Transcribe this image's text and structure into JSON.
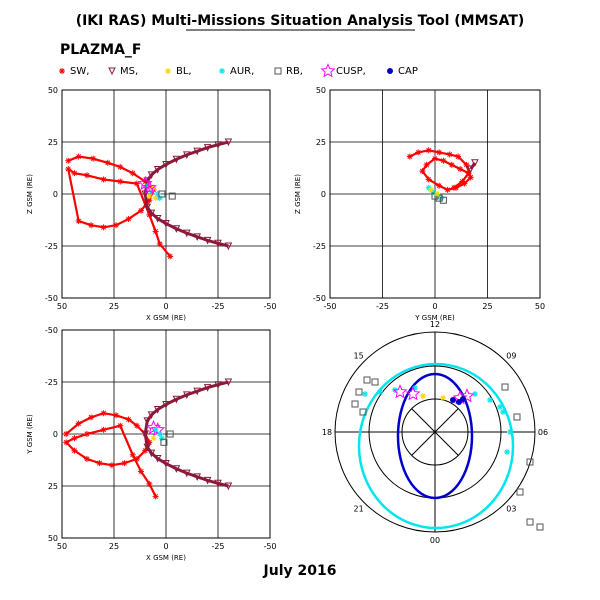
{
  "header": {
    "title": "(IKI RAS) Multi-Missions Situation Analysis Tool (MMSAT)",
    "mission": "PLAZMA_F"
  },
  "footer": {
    "date": "July 2016"
  },
  "legend": [
    {
      "label": "SW,",
      "color": "#ff0000",
      "marker": "asterisk"
    },
    {
      "label": "MS,",
      "color": "#8b1a3a",
      "marker": "triangle-down"
    },
    {
      "label": "BL,",
      "color": "#ffd700",
      "marker": "asterisk"
    },
    {
      "label": "AUR,",
      "color": "#00e5ee",
      "marker": "asterisk"
    },
    {
      "label": "RB,",
      "color": "#555555",
      "marker": "square"
    },
    {
      "label": "CUSP,",
      "color": "#ff00ff",
      "marker": "star"
    },
    {
      "label": "CAP",
      "color": "#0000cc",
      "marker": "circle"
    }
  ],
  "chart_data": [
    {
      "type": "scatter",
      "panel": "X-Z",
      "xlabel": "X GSM (RE)",
      "ylabel": "Z GSM (RE)",
      "xlim": [
        50,
        -50
      ],
      "ylim": [
        -50,
        50
      ],
      "xticks": [
        50,
        25,
        0,
        -25,
        -50
      ],
      "yticks": [
        50,
        25,
        0,
        -25,
        -50
      ],
      "grid": true,
      "series": [
        {
          "name": "SW,",
          "color": "#ff0000",
          "x": [
            47,
            42,
            35,
            28,
            22,
            16,
            10,
            6,
            8,
            12,
            18,
            24,
            30,
            36,
            42,
            47,
            44,
            38,
            30,
            22,
            14,
            8,
            5,
            3,
            -2
          ],
          "y": [
            16,
            18,
            17,
            15,
            13,
            10,
            6,
            2,
            -3,
            -8,
            -12,
            -15,
            -16,
            -15,
            -13,
            12,
            10,
            9,
            7,
            6,
            5,
            -10,
            -18,
            -24,
            -30
          ]
        },
        {
          "name": "MS,",
          "color": "#8b1a3a",
          "x": [
            -30,
            -25,
            -20,
            -15,
            -10,
            -5,
            0,
            4,
            7,
            9,
            10,
            9,
            7,
            4,
            0,
            -5,
            -10,
            -15,
            -20,
            -25,
            -30
          ],
          "y": [
            25,
            23.7,
            22.3,
            20.6,
            18.8,
            16.7,
            14.2,
            11.8,
            9.2,
            6.3,
            0,
            -6.3,
            -9.2,
            -11.8,
            -14.2,
            -16.7,
            -18.8,
            -20.6,
            -22.3,
            -23.7,
            -25
          ]
        },
        {
          "name": "BL,",
          "color": "#ffd700",
          "x": [
            6,
            8,
            5
          ],
          "y": [
            3,
            -1,
            -2
          ]
        },
        {
          "name": "AUR,",
          "color": "#00e5ee",
          "x": [
            9,
            7,
            4,
            3
          ],
          "y": [
            4,
            1,
            0,
            -2
          ]
        },
        {
          "name": "RB,",
          "color": "#555555",
          "x": [
            2,
            -3
          ],
          "y": [
            0,
            -1
          ]
        },
        {
          "name": "CUSP,",
          "color": "#ff00ff",
          "x": [
            10,
            8
          ],
          "y": [
            5,
            3
          ]
        }
      ]
    },
    {
      "type": "scatter",
      "panel": "Y-Z",
      "xlabel": "Y GSM (RE)",
      "ylabel": "Z GSM (RE)",
      "xlim": [
        -50,
        50
      ],
      "ylim": [
        -50,
        50
      ],
      "xticks": [
        -50,
        -25,
        0,
        25,
        50
      ],
      "yticks": [
        50,
        25,
        0,
        -25,
        -50
      ],
      "grid": true,
      "series": [
        {
          "name": "SW,",
          "color": "#ff0000",
          "x": [
            -12,
            -8,
            -3,
            2,
            7,
            11,
            15,
            17,
            14,
            10,
            6,
            2,
            -3,
            -6,
            -4,
            0,
            4,
            8,
            12,
            16,
            13,
            9
          ],
          "y": [
            18,
            20,
            21,
            20,
            19,
            18,
            14,
            8,
            5,
            3,
            2,
            4,
            7,
            11,
            14,
            17,
            16,
            14,
            12,
            10,
            6,
            3
          ]
        },
        {
          "name": "MS,",
          "color": "#8b1a3a",
          "x": [
            17,
            19
          ],
          "y": [
            12,
            15
          ]
        },
        {
          "name": "AUR,",
          "color": "#00e5ee",
          "x": [
            -3,
            -1,
            1,
            3
          ],
          "y": [
            3,
            1,
            -1,
            -2
          ]
        },
        {
          "name": "RB,",
          "color": "#555555",
          "x": [
            0,
            2,
            4
          ],
          "y": [
            -1,
            -2,
            -3
          ]
        },
        {
          "name": "BL,",
          "color": "#ffd700",
          "x": [
            -2,
            1
          ],
          "y": [
            2,
            0
          ]
        }
      ]
    },
    {
      "type": "scatter",
      "panel": "X-Y",
      "xlabel": "X GSM (RE)",
      "ylabel": "Y GSM (RE)",
      "xlim": [
        50,
        -50
      ],
      "ylim": [
        50,
        -50
      ],
      "xticks": [
        50,
        25,
        0,
        -25,
        -50
      ],
      "yticks": [
        -50,
        -25,
        0,
        25,
        50
      ],
      "grid": true,
      "series": [
        {
          "name": "SW,",
          "color": "#ff0000",
          "x": [
            48,
            42,
            36,
            30,
            24,
            18,
            14,
            10,
            8,
            10,
            14,
            20,
            26,
            32,
            38,
            44,
            48,
            44,
            38,
            30,
            22,
            16,
            12,
            8,
            5
          ],
          "y": [
            0,
            -5,
            -8,
            -10,
            -9,
            -7,
            -4,
            0,
            4,
            8,
            12,
            14,
            15,
            14,
            12,
            8,
            4,
            2,
            0,
            -2,
            -4,
            10,
            18,
            24,
            30
          ]
        },
        {
          "name": "MS,",
          "color": "#8b1a3a",
          "x": [
            -30,
            -25,
            -20,
            -15,
            -10,
            -5,
            0,
            4,
            7,
            9,
            10,
            9,
            7,
            4,
            0,
            -5,
            -10,
            -15,
            -20,
            -25,
            -30
          ],
          "y": [
            -25,
            -23.7,
            -22.3,
            -20.6,
            -18.8,
            -16.7,
            -14.2,
            -11.8,
            -9.2,
            -6.3,
            0,
            6.3,
            9.2,
            11.8,
            14.2,
            16.7,
            18.8,
            20.6,
            22.3,
            23.7,
            25
          ]
        },
        {
          "name": "CUSP,",
          "color": "#ff00ff",
          "x": [
            6,
            4
          ],
          "y": [
            -3,
            -2
          ]
        },
        {
          "name": "AUR,",
          "color": "#00e5ee",
          "x": [
            5,
            3,
            2
          ],
          "y": [
            -2,
            0,
            2
          ]
        },
        {
          "name": "RB,",
          "color": "#555555",
          "x": [
            -2,
            1
          ],
          "y": [
            0,
            4
          ]
        },
        {
          "name": "BL,",
          "color": "#ffd700",
          "x": [
            6
          ],
          "y": [
            2
          ]
        }
      ]
    },
    {
      "type": "polar",
      "panel": "MLT-polar",
      "angular_labels": [
        "12",
        "09",
        "06",
        "03",
        "00",
        "21",
        "18",
        "15"
      ],
      "grid": true,
      "series": [
        {
          "name": "AUR,",
          "color": "#00e5ee"
        },
        {
          "name": "CAP",
          "color": "#0000cc"
        },
        {
          "name": "CUSP,",
          "color": "#ff00ff"
        },
        {
          "name": "BL,",
          "color": "#ffd700"
        },
        {
          "name": "RB,",
          "color": "#555555"
        }
      ]
    }
  ]
}
